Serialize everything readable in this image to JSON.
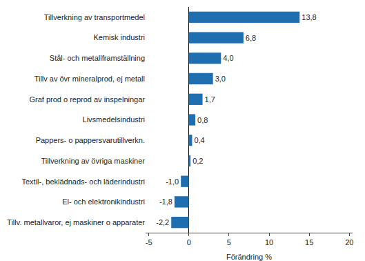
{
  "chart_data": {
    "type": "bar",
    "orientation": "horizontal",
    "x_label": "Förändring %",
    "categories": [
      "Tillverkning av transportmedel",
      "Kemisk industri",
      "Stål- och metallframställning",
      "Tillv av övr mineralprod, ej metall",
      "Graf prod o reprod av inspelningar",
      "Livsmedelsindustri",
      "Pappers- o pappersvarutillverkn.",
      "Tillverkning av övriga maskiner",
      "Textil-, beklädnads- och läderindustri",
      "El- och elektronikindustri",
      "Tillv. metallvaror, ej maskiner o apparater"
    ],
    "values": [
      13.8,
      6.8,
      4.0,
      3.0,
      1.7,
      0.8,
      0.4,
      0.2,
      -1.0,
      -1.8,
      -2.2
    ],
    "value_labels": [
      "13,8",
      "6,8",
      "4,0",
      "3,0",
      "1,7",
      "0,8",
      "0,4",
      "0,2",
      "-1,0",
      "-1,8",
      "-2,2"
    ],
    "data_labels": true,
    "color": "#1f6fb0",
    "xlim": [
      -5.4,
      20.4
    ],
    "xticks": [
      -5,
      0,
      5,
      10,
      15,
      20
    ],
    "grid": false
  }
}
